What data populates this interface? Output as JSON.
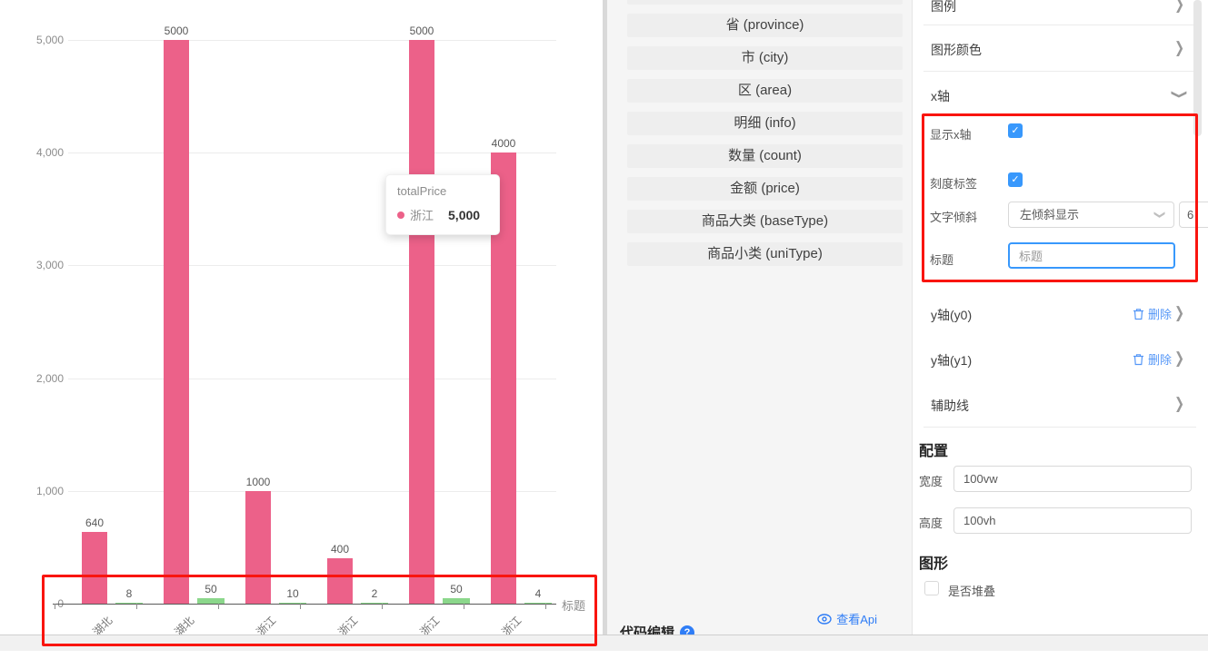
{
  "chart_data": {
    "type": "bar",
    "categories": [
      "湖北",
      "湖北",
      "浙江",
      "浙江",
      "浙江",
      "浙江"
    ],
    "series": [
      {
        "name": "totalPrice",
        "color": "#ec6189",
        "values": [
          640,
          5000,
          1000,
          400,
          5000,
          4000
        ],
        "labels": [
          "640",
          "5000",
          "1000",
          "400",
          "5000",
          "4000"
        ]
      },
      {
        "name": "count",
        "color": "#8bd78b",
        "values": [
          8,
          50,
          10,
          2,
          50,
          4
        ],
        "labels": [
          "8",
          "50",
          "10",
          "2",
          "50",
          "4"
        ]
      }
    ],
    "y_ticks": [
      "5,000",
      "4,000",
      "3,000",
      "2,000",
      "1,000",
      "0"
    ],
    "ylim": [
      0,
      5000
    ],
    "x_axis_title": "标题",
    "grid": true,
    "legend": "none"
  },
  "tooltip": {
    "title": "totalPrice",
    "series_label": "浙江",
    "value": "5,000",
    "dot_color": "#ec6189"
  },
  "fields": {
    "items": [
      "省 (province)",
      "市 (city)",
      "区 (area)",
      "明细 (info)",
      "数量 (count)",
      "金额 (price)",
      "商品大类 (baseType)",
      "商品小类 (uniType)"
    ],
    "view_api_label": "查看Api",
    "code_edit_label": "代码编辑",
    "info_glyph": "?"
  },
  "panel": {
    "sections": {
      "legend": "图例",
      "shape_color": "图形颜色",
      "x_axis": "x轴",
      "y_axis_0": "y轴(y0)",
      "y_axis_1": "y轴(y1)",
      "aux_line": "辅助线"
    },
    "delete_label": "删除",
    "x_axis_form": {
      "show_x_label": "显示x轴",
      "show_x_checked": true,
      "tick_label": "刻度标签",
      "tick_checked": true,
      "slant_label": "文字倾斜",
      "slant_value": "左倾斜显示",
      "slant_extra_value": "6",
      "title_label": "标题",
      "title_value": "标题"
    },
    "config": {
      "heading": "配置",
      "width_label": "宽度",
      "width_value": "100vw",
      "height_label": "高度",
      "height_value": "100vh"
    },
    "shape": {
      "heading": "图形",
      "stack_label": "是否堆叠",
      "stack_checked": false
    },
    "check_glyph": "✓",
    "chevron_glyph": "❯"
  },
  "colors": {
    "accent_blue": "#3898fc",
    "link_blue": "#2f7df6",
    "annotation_red": "#f9150f",
    "bar_pink": "#ec6189",
    "bar_green": "#8bd78b"
  }
}
